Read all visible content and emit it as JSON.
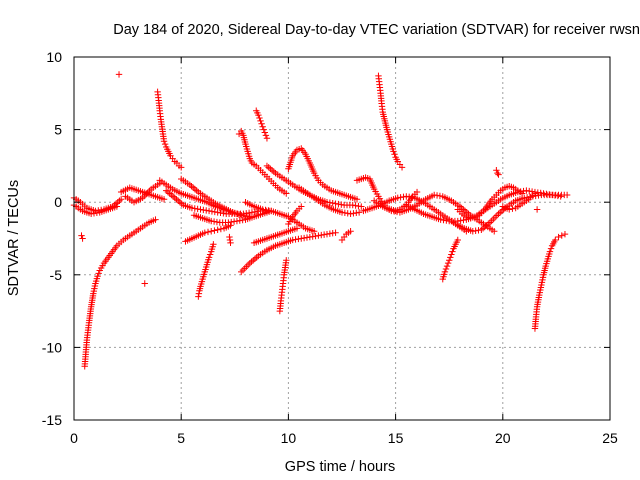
{
  "chart_data": {
    "type": "scatter",
    "title": "Day 184 of 2020, Sidereal Day-to-day VTEC variation (SDTVAR) for receiver rwsn",
    "xlabel": "GPS time / hours",
    "ylabel": "SDTVAR / TECUs",
    "xlim": [
      0,
      25
    ],
    "ylim": [
      -15,
      10
    ],
    "x_ticks": [
      0,
      5,
      10,
      15,
      20,
      25
    ],
    "y_ticks": [
      -15,
      -10,
      -5,
      0,
      5,
      10
    ],
    "x_tick_labels": [
      "0",
      "5",
      "10",
      "15",
      "20",
      "25"
    ],
    "y_tick_labels": [
      "-15",
      "-10",
      "-5",
      "0",
      "5",
      "10"
    ],
    "grid": true,
    "marker": "+",
    "color": "#ff0000",
    "segments": [
      {
        "x": [
          0.0,
          0.3,
          0.6,
          1.0,
          1.4,
          1.8,
          2.2
        ],
        "y": [
          0.3,
          0.0,
          -0.4,
          -0.6,
          -0.5,
          -0.3,
          0.2
        ]
      },
      {
        "x": [
          0.0,
          0.4,
          0.8,
          1.2,
          1.6,
          2.0
        ],
        "y": [
          -0.2,
          -0.6,
          -0.8,
          -0.7,
          -0.5,
          -0.3
        ]
      },
      {
        "x": [
          0.35,
          0.4
        ],
        "y": [
          -2.3,
          -2.5
        ]
      },
      {
        "x": [
          0.5,
          0.6,
          0.7,
          0.8,
          0.9,
          1.0,
          1.1,
          1.2,
          1.4,
          1.6,
          1.8,
          2.0,
          2.3,
          2.6,
          2.9,
          3.2,
          3.5,
          3.8
        ],
        "y": [
          -11.3,
          -9.5,
          -8.3,
          -7.2,
          -6.3,
          -5.6,
          -5.1,
          -4.7,
          -4.2,
          -3.8,
          -3.4,
          -3.0,
          -2.6,
          -2.3,
          -2.0,
          -1.7,
          -1.4,
          -1.2
        ]
      },
      {
        "x": [
          2.1
        ],
        "y": [
          8.8
        ]
      },
      {
        "x": [
          3.3
        ],
        "y": [
          -5.6
        ]
      },
      {
        "x": [
          2.2,
          2.6,
          3.0,
          3.4,
          3.8,
          4.2
        ],
        "y": [
          0.7,
          1.0,
          0.8,
          0.6,
          0.4,
          0.2
        ]
      },
      {
        "x": [
          2.4,
          2.8,
          3.2,
          3.6,
          4.0
        ],
        "y": [
          0.4,
          0.0,
          0.3,
          0.9,
          1.3
        ]
      },
      {
        "x": [
          3.9,
          3.95,
          4.0,
          4.05,
          4.1,
          4.15,
          4.2,
          4.3,
          4.4,
          4.5,
          4.6,
          4.7,
          4.8,
          4.9,
          5.0
        ],
        "y": [
          7.6,
          7.0,
          6.3,
          5.7,
          5.2,
          4.7,
          4.2,
          3.8,
          3.5,
          3.2,
          3.0,
          2.8,
          2.7,
          2.5,
          2.4
        ]
      },
      {
        "x": [
          4.0,
          4.3,
          4.6,
          5.0,
          5.4,
          5.8,
          6.2,
          6.6,
          7.0,
          7.4,
          7.8,
          8.2
        ],
        "y": [
          1.5,
          1.2,
          0.9,
          0.6,
          0.4,
          0.2,
          0.0,
          -0.3,
          -0.5,
          -0.7,
          -0.9,
          -1.0
        ]
      },
      {
        "x": [
          4.3,
          4.7,
          5.1,
          5.5,
          5.9,
          6.3,
          6.7,
          7.1,
          7.5,
          7.9,
          8.3,
          8.7,
          9.1
        ],
        "y": [
          0.8,
          0.3,
          -0.2,
          -0.4,
          -0.5,
          -0.6,
          -0.7,
          -0.8,
          -0.8,
          -0.8,
          -0.7,
          -0.6,
          -0.6
        ]
      },
      {
        "x": [
          5.0,
          5.4,
          5.8,
          6.2,
          6.6,
          7.0,
          7.4,
          7.8,
          8.2
        ],
        "y": [
          1.6,
          1.2,
          0.7,
          0.3,
          -0.1,
          -0.4,
          -0.7,
          -0.9,
          -1.0
        ]
      },
      {
        "x": [
          5.2,
          5.5,
          5.8,
          6.1,
          6.4,
          6.7,
          7.0,
          7.3
        ],
        "y": [
          -2.7,
          -2.5,
          -2.3,
          -2.1,
          -2.0,
          -1.9,
          -1.8,
          -1.6
        ]
      },
      {
        "x": [
          5.6,
          6.0,
          6.4,
          6.8,
          7.2,
          7.6,
          8.0,
          8.4,
          8.8,
          9.2
        ],
        "y": [
          -0.9,
          -1.1,
          -1.3,
          -1.4,
          -1.4,
          -1.3,
          -1.2,
          -1.0,
          -0.8,
          -0.6
        ]
      },
      {
        "x": [
          5.8,
          5.85,
          5.9,
          6.0,
          6.1,
          6.2,
          6.3,
          6.4,
          6.5
        ],
        "y": [
          -6.5,
          -6.1,
          -5.8,
          -5.3,
          -4.8,
          -4.3,
          -3.8,
          -3.4,
          -2.9
        ]
      },
      {
        "x": [
          7.25,
          7.3
        ],
        "y": [
          -2.4,
          -2.8
        ]
      },
      {
        "x": [
          7.7,
          7.8,
          7.9,
          8.0,
          8.1,
          8.2,
          8.3,
          8.5,
          8.7,
          8.9,
          9.1,
          9.3,
          9.5,
          9.7,
          9.9
        ],
        "y": [
          4.7,
          4.9,
          4.6,
          4.0,
          3.5,
          3.0,
          2.7,
          2.5,
          2.2,
          1.9,
          1.6,
          1.3,
          1.0,
          0.8,
          0.6
        ]
      },
      {
        "x": [
          7.8,
          8.2,
          8.6,
          9.0,
          9.4,
          9.8,
          10.2,
          10.6,
          11.0,
          11.4,
          11.8,
          12.2
        ],
        "y": [
          -4.8,
          -4.2,
          -3.7,
          -3.3,
          -3.0,
          -2.8,
          -2.6,
          -2.5,
          -2.4,
          -2.3,
          -2.2,
          -2.1
        ]
      },
      {
        "x": [
          8.5,
          8.6,
          8.7,
          8.8,
          8.9,
          9.0
        ],
        "y": [
          6.3,
          6.0,
          5.6,
          5.2,
          4.8,
          4.4
        ]
      },
      {
        "x": [
          8.0,
          8.4,
          8.8,
          9.2,
          9.6,
          10.0,
          10.4,
          10.8,
          11.2
        ],
        "y": [
          0.0,
          -0.3,
          -0.5,
          -0.6,
          -0.8,
          -1.0,
          -1.4,
          -1.8,
          -2.0
        ]
      },
      {
        "x": [
          8.4,
          8.8,
          9.2,
          9.6,
          10.0,
          10.4
        ],
        "y": [
          -2.8,
          -2.6,
          -2.4,
          -2.2,
          -2.0,
          -1.8
        ]
      },
      {
        "x": [
          9.0,
          9.4,
          9.8,
          10.2,
          10.6,
          11.0,
          11.4,
          11.8,
          12.2,
          12.6,
          13.0,
          13.4
        ],
        "y": [
          2.5,
          2.0,
          1.6,
          1.2,
          0.8,
          0.5,
          0.2,
          0.0,
          -0.1,
          -0.2,
          -0.2,
          -0.3
        ]
      },
      {
        "x": [
          9.6,
          9.65,
          9.7,
          9.75,
          9.8,
          9.85,
          9.9
        ],
        "y": [
          -7.5,
          -6.8,
          -6.2,
          -5.6,
          -5.0,
          -4.5,
          -4.0
        ]
      },
      {
        "x": [
          10.0,
          10.2,
          10.4,
          10.6,
          10.8,
          11.0,
          11.2,
          11.4,
          11.6,
          11.8,
          12.0,
          12.4,
          12.8,
          13.2
        ],
        "y": [
          2.3,
          3.2,
          3.6,
          3.7,
          3.3,
          2.7,
          2.0,
          1.5,
          1.2,
          1.0,
          0.8,
          0.6,
          0.4,
          0.2
        ]
      },
      {
        "x": [
          10.0,
          10.2,
          10.4,
          10.6
        ],
        "y": [
          -1.5,
          -1.0,
          -0.6,
          -0.3
        ]
      },
      {
        "x": [
          10.5,
          10.9,
          11.3,
          11.7,
          12.1,
          12.5,
          12.9,
          13.3
        ],
        "y": [
          1.0,
          0.6,
          0.2,
          -0.2,
          -0.5,
          -0.7,
          -0.8,
          -0.7
        ]
      },
      {
        "x": [
          12.5,
          12.6,
          12.7,
          12.8,
          12.9
        ],
        "y": [
          -2.6,
          -2.4,
          -2.2,
          -2.1,
          -2.0
        ]
      },
      {
        "x": [
          13.2,
          13.4,
          13.6,
          13.8,
          14.0,
          14.2,
          14.4,
          14.6,
          14.8,
          15.0,
          15.2,
          15.4,
          15.6,
          15.8,
          16.0
        ],
        "y": [
          1.5,
          1.6,
          1.7,
          1.6,
          0.9,
          0.4,
          -0.1,
          -0.4,
          -0.5,
          -0.6,
          -0.5,
          -0.3,
          0.0,
          0.4,
          0.7
        ]
      },
      {
        "x": [
          14.2,
          14.25,
          14.3,
          14.35,
          14.4,
          14.5,
          14.6,
          14.7,
          14.8,
          14.9,
          15.0,
          15.1,
          15.2,
          15.3
        ],
        "y": [
          8.7,
          8.1,
          7.5,
          6.8,
          6.2,
          5.6,
          5.0,
          4.5,
          4.0,
          3.5,
          3.1,
          2.8,
          2.6,
          2.4
        ]
      },
      {
        "x": [
          13.5,
          13.9,
          14.3,
          14.7,
          15.1,
          15.5,
          15.9,
          16.3,
          16.7,
          17.1,
          17.5,
          17.9,
          18.3
        ],
        "y": [
          -0.6,
          -0.4,
          -0.2,
          0.1,
          0.3,
          0.4,
          0.3,
          0.0,
          -0.4,
          -0.8,
          -1.2,
          -1.6,
          -2.0
        ]
      },
      {
        "x": [
          14.0,
          14.4,
          14.8,
          15.2,
          15.6,
          16.0,
          16.4,
          16.8,
          17.2,
          17.6,
          18.0,
          18.4,
          18.8,
          19.2,
          19.6
        ],
        "y": [
          0.1,
          -0.3,
          -0.6,
          -0.7,
          -0.5,
          -0.2,
          0.2,
          0.5,
          0.4,
          0.1,
          -0.3,
          -0.8,
          -1.2,
          -1.6,
          -2.0
        ]
      },
      {
        "x": [
          15.5,
          15.9,
          16.3,
          16.7,
          17.1,
          17.5,
          17.9,
          18.3,
          18.7,
          19.1,
          19.5,
          19.9,
          20.3,
          20.7,
          21.1,
          21.5,
          21.9,
          22.3,
          22.7
        ],
        "y": [
          -0.2,
          -0.5,
          -0.8,
          -1.0,
          -1.2,
          -1.3,
          -1.3,
          -1.2,
          -1.0,
          -0.6,
          -0.2,
          0.2,
          0.5,
          0.7,
          0.8,
          0.7,
          0.6,
          0.5,
          0.4
        ]
      },
      {
        "x": [
          17.2,
          17.3,
          17.4,
          17.5,
          17.6,
          17.7,
          17.8,
          17.9
        ],
        "y": [
          -5.3,
          -4.8,
          -4.4,
          -4.0,
          -3.6,
          -3.2,
          -2.9,
          -2.6
        ]
      },
      {
        "x": [
          17.9,
          18.1,
          18.3,
          18.5,
          18.7,
          18.9,
          19.1,
          19.3,
          19.5,
          19.7,
          19.9,
          20.1,
          20.3,
          20.5,
          20.7,
          20.9
        ],
        "y": [
          -0.5,
          -0.8,
          -1.0,
          -1.1,
          -1.1,
          -0.9,
          -0.6,
          -0.2,
          0.2,
          0.5,
          0.8,
          1.0,
          1.1,
          1.0,
          0.8,
          0.6
        ]
      },
      {
        "x": [
          17.8,
          18.2,
          18.6,
          19.0,
          19.4,
          19.8,
          20.2,
          20.6,
          21.0,
          21.4,
          21.8,
          22.2,
          22.6,
          23.0
        ],
        "y": [
          -1.5,
          -1.8,
          -2.0,
          -1.9,
          -1.4,
          -0.8,
          -0.3,
          0.1,
          0.3,
          0.4,
          0.5,
          0.5,
          0.5,
          0.5
        ]
      },
      {
        "x": [
          19.7,
          19.75,
          19.8
        ],
        "y": [
          2.2,
          2.0,
          1.9
        ]
      },
      {
        "x": [
          20.0,
          20.3,
          20.6,
          20.9,
          21.2,
          21.5
        ],
        "y": [
          -0.3,
          -0.5,
          -0.4,
          -0.1,
          0.2,
          0.6
        ]
      },
      {
        "x": [
          21.6
        ],
        "y": [
          -0.5
        ]
      },
      {
        "x": [
          21.5,
          21.55,
          21.6,
          21.7,
          21.8,
          21.9,
          22.0,
          22.1,
          22.2,
          22.3,
          22.45,
          22.6,
          22.75,
          22.9
        ],
        "y": [
          -8.7,
          -7.9,
          -7.2,
          -6.4,
          -5.7,
          -5.0,
          -4.4,
          -3.9,
          -3.4,
          -3.0,
          -2.6,
          -2.4,
          -2.3,
          -2.2
        ]
      }
    ]
  }
}
